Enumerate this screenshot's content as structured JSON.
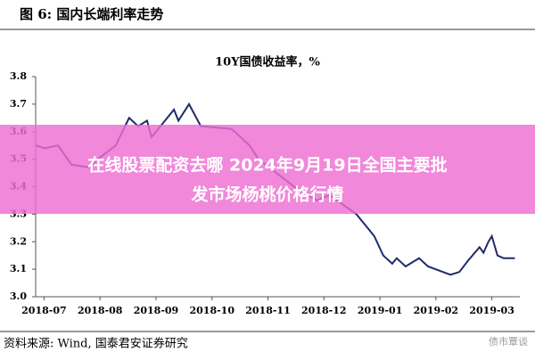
{
  "caption": "图 6:  国内长端利率走势",
  "source": "资料来源:  Wind,  国泰君安证券研究",
  "watermark": "债市覃谈",
  "banner": [
    "在线股票配资去哪 2024年9月19日全国主要批",
    "发市场杨桃价格行情"
  ],
  "chart_data": {
    "type": "line",
    "title": "10Y国债收益率，%",
    "x": [
      -0.15,
      0.01,
      0.25,
      0.49,
      0.81,
      0.96,
      1.28,
      1.52,
      1.68,
      1.84,
      1.92,
      2.08,
      2.32,
      2.4,
      2.59,
      2.8,
      3.35,
      3.67,
      3.83,
      4.47,
      4.87,
      5.1,
      5.58,
      5.82,
      5.9,
      6.06,
      6.22,
      6.3,
      6.46,
      6.54,
      6.7,
      6.86,
      7.26,
      7.42,
      7.57,
      7.78,
      7.85,
      7.94,
      8.0,
      8.1,
      8.21,
      8.41
    ],
    "series": [
      {
        "name": "10Y国债收益率",
        "color": "#1f2a6b",
        "values": [
          3.55,
          3.54,
          3.55,
          3.48,
          3.47,
          3.5,
          3.55,
          3.65,
          3.62,
          3.64,
          3.58,
          3.62,
          3.68,
          3.64,
          3.7,
          3.62,
          3.61,
          3.55,
          3.5,
          3.4,
          3.35,
          3.37,
          3.3,
          3.24,
          3.22,
          3.15,
          3.12,
          3.14,
          3.11,
          3.12,
          3.14,
          3.11,
          3.08,
          3.09,
          3.13,
          3.18,
          3.16,
          3.2,
          3.22,
          3.15,
          3.14,
          3.14
        ]
      }
    ],
    "xlim": [
      -0.15,
      8.5
    ],
    "xticks": [
      {
        "value": 0,
        "label": "2018-07"
      },
      {
        "value": 1,
        "label": "2018-08"
      },
      {
        "value": 2,
        "label": "2018-09"
      },
      {
        "value": 3,
        "label": "2018-10"
      },
      {
        "value": 4,
        "label": "2018-11"
      },
      {
        "value": 5,
        "label": "2018-12"
      },
      {
        "value": 6,
        "label": "2019-01"
      },
      {
        "value": 7,
        "label": "2019-02"
      },
      {
        "value": 8,
        "label": "2019-03"
      }
    ],
    "ylim": [
      3.0,
      3.8
    ],
    "yticks": [
      {
        "value": 3.0,
        "label": "3.0"
      },
      3.1,
      3.2,
      3.3,
      3.4,
      3.5,
      3.6,
      3.7,
      3.8
    ]
  }
}
